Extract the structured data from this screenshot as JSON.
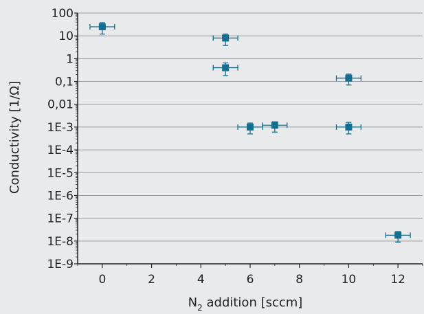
{
  "chart_data": {
    "type": "scatter",
    "title": "",
    "xlabel": "N",
    "xlabel_sub": "2",
    "xlabel_rest": " addition [sccm]",
    "ylabel": "Conductivity [1/Ω]",
    "x_ticks": [
      "0",
      "2",
      "4",
      "6",
      "8",
      "10",
      "12"
    ],
    "x_tick_values": [
      0,
      2,
      4,
      6,
      8,
      10,
      12
    ],
    "y_ticks": [
      "100",
      "10",
      "1",
      "0,1",
      "0,01",
      "1E-3",
      "1E-4",
      "1E-5",
      "1E-6",
      "1E-7",
      "1E-8",
      "1E-9"
    ],
    "y_tick_exponents": [
      2,
      1,
      0,
      -1,
      -2,
      -3,
      -4,
      -5,
      -6,
      -7,
      -8,
      -9
    ],
    "xlim": [
      -1,
      13
    ],
    "ylim": [
      1e-09,
      100
    ],
    "y_scale": "log",
    "grid": "horizontal",
    "marker_color": "#136e8f",
    "points": [
      {
        "x": 0,
        "y": 25,
        "y_low": 12,
        "y_high": 38
      },
      {
        "x": 5,
        "y": 8,
        "y_low": 3.8,
        "y_high": 12
      },
      {
        "x": 5,
        "y": 0.4,
        "y_low": 0.18,
        "y_high": 0.65
      },
      {
        "x": 6,
        "y": 0.001,
        "y_low": 0.0005,
        "y_high": 0.0015
      },
      {
        "x": 7,
        "y": 0.0012,
        "y_low": 0.0006,
        "y_high": 0.0017
      },
      {
        "x": 10,
        "y": 0.14,
        "y_low": 0.07,
        "y_high": 0.21
      },
      {
        "x": 10,
        "y": 0.001,
        "y_low": 0.0005,
        "y_high": 0.0016
      },
      {
        "x": 12,
        "y": 1.8e-08,
        "y_low": 9e-09,
        "y_high": 2.6e-08
      }
    ],
    "x_error": 0.5
  }
}
